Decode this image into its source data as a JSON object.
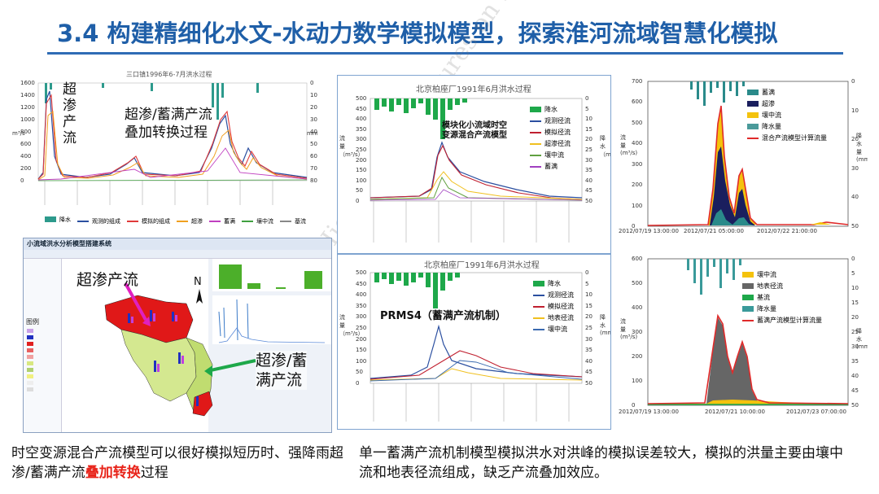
{
  "slide": {
    "title": "3.4 构建精细化水文-水动力数学模拟模型，探索淮河流域智慧化模拟",
    "watermark": "Highlighted Lectures on Surveying and Mapping",
    "colors": {
      "title": "#1f5fa8",
      "highlight": "#e8241a",
      "rule": "#2f6cb5"
    }
  },
  "panel_a": {
    "chart_title": "三口镇1996年6-7月洪水过程",
    "y_left_label": "m³/s",
    "y_right_label": "mm",
    "y_left_ticks": [
      "1600",
      "1400",
      "1200",
      "1000",
      "800",
      "600",
      "400",
      "200",
      "0"
    ],
    "y_right_ticks": [
      "0",
      "10",
      "20",
      "30",
      "40",
      "50",
      "60",
      "70",
      "80"
    ],
    "annotation_1": "超\n渗\n产\n流",
    "annotation_2": "超渗/蓄满产流\n叠加转换过程",
    "legend": [
      "降水",
      "观测的组成",
      "模拟的组成",
      "超渗",
      "蓄满",
      "壤中流",
      "基流"
    ]
  },
  "panel_b": {
    "title": "小流域洪水分析模型搭建系统",
    "north": "N",
    "annotation_1": "超渗产流",
    "annotation_2": "超渗/蓄\n满产流",
    "legend_title": "图例"
  },
  "panel_c": {
    "chart_title": "北京柏座厂1991年6月洪水过程",
    "annotation": "模块化小流域时空\n变源混合产流模型",
    "y_left_label": "流量（m³/s）",
    "y_right_label": "降水（mm）",
    "y_left_ticks": [
      "500",
      "450",
      "400",
      "350",
      "300",
      "250",
      "200",
      "150",
      "100",
      "50",
      "0"
    ],
    "y_right_ticks": [
      "0",
      "5",
      "10",
      "15",
      "20",
      "25",
      "30",
      "35",
      "40",
      "45",
      "50"
    ],
    "legend": [
      "降水",
      "观测径流",
      "模拟径流",
      "超渗径流",
      "壤中流",
      "蓄满"
    ]
  },
  "panel_d": {
    "chart_title": "北京柏座厂1991年6月洪水过程",
    "annotation": "PRMS4（蓄满产流机制）",
    "y_left_label": "流量（m³/s）",
    "y_right_label": "降水(mm)",
    "y_left_ticks": [
      "500",
      "450",
      "400",
      "350",
      "300",
      "250",
      "200",
      "150",
      "100",
      "50",
      "0"
    ],
    "y_right_ticks": [
      "0",
      "5",
      "10",
      "15",
      "20",
      "25",
      "30",
      "35",
      "40",
      "45",
      "50"
    ],
    "legend": [
      "降水",
      "观测径流",
      "模拟径流",
      "地表径流",
      "壤中流"
    ]
  },
  "panel_e": {
    "y_left_label": "流量(m³/s)",
    "y_right_label": "降水量(mm)",
    "y_left_ticks": [
      "700",
      "600",
      "500",
      "400",
      "300",
      "200",
      "100",
      "0"
    ],
    "y_right_ticks": [
      "0",
      "10",
      "20",
      "30",
      "40",
      "50"
    ],
    "x_ticks": [
      "2012/07/19 13:00:00",
      "2012/07/21 05:00:00",
      "2012/07/22 21:00:00"
    ],
    "legend": [
      "蓄满",
      "超渗",
      "壤中流",
      "降水量",
      "混合产流模型计算流量"
    ],
    "legend_colors": [
      "#2a8a8a",
      "#1a1f5e",
      "#f4c20d",
      "#4a9a9a",
      "#e02a2a"
    ]
  },
  "panel_f": {
    "y_left_label": "流量(m³/s)",
    "y_right_label": "降水(mm)",
    "y_left_ticks": [
      "600",
      "500",
      "400",
      "300",
      "200",
      "100",
      "0"
    ],
    "y_right_ticks": [
      "0",
      "5",
      "10",
      "15",
      "20",
      "25",
      "30",
      "35",
      "40",
      "45",
      "50"
    ],
    "x_ticks": [
      "2012/07/19 13:00:00",
      "2012/07/21 10:00:00",
      "2012/07/23 07:00:00"
    ],
    "legend": [
      "壤中流",
      "地表径流",
      "基流",
      "降水量",
      "蓄满产流模型计算流量"
    ],
    "legend_colors": [
      "#f4c20d",
      "#666666",
      "#1ea84a",
      "#3a9a9a",
      "#e02a2a"
    ]
  },
  "caption_left": {
    "before": "时空变源混合产流模型可以很好模拟短历时、强降雨超渗/蓄满产流",
    "highlight": "叠加转换",
    "after": "过程"
  },
  "caption_right": {
    "text": "单一蓄满产流机制模型模拟洪水对洪峰的模拟误差较大，模拟的洪量主要由壤中流和地表径流组成，缺乏产流叠加效应。"
  }
}
